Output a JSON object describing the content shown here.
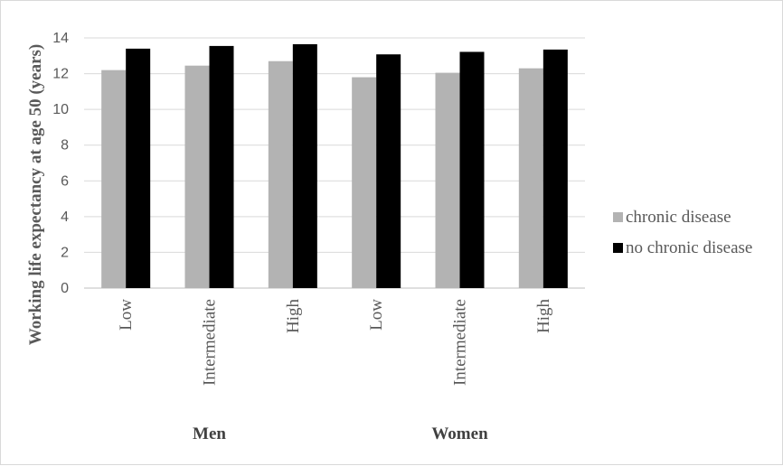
{
  "chart_data": {
    "type": "bar",
    "title": "",
    "xlabel": "",
    "ylabel": "Working life expectancy at age 50 (years)",
    "ylim": [
      0,
      14
    ],
    "yticks": [
      0,
      2,
      4,
      6,
      8,
      10,
      12,
      14
    ],
    "grid": true,
    "legend_position": "right",
    "groups": [
      {
        "label": "Men",
        "categories": [
          "Low",
          "Intermediate",
          "High"
        ]
      },
      {
        "label": "Women",
        "categories": [
          "Low",
          "Intermediate",
          "High"
        ]
      }
    ],
    "categories": [
      "Low",
      "Intermediate",
      "High",
      "Low",
      "Intermediate",
      "High"
    ],
    "series": [
      {
        "name": "chronic disease",
        "color": "#b3b3b3",
        "values": [
          12.2,
          12.45,
          12.7,
          11.8,
          12.05,
          12.3
        ]
      },
      {
        "name": "no chronic disease",
        "color": "#000000",
        "values": [
          13.4,
          13.55,
          13.65,
          13.08,
          13.22,
          13.35
        ]
      }
    ]
  }
}
